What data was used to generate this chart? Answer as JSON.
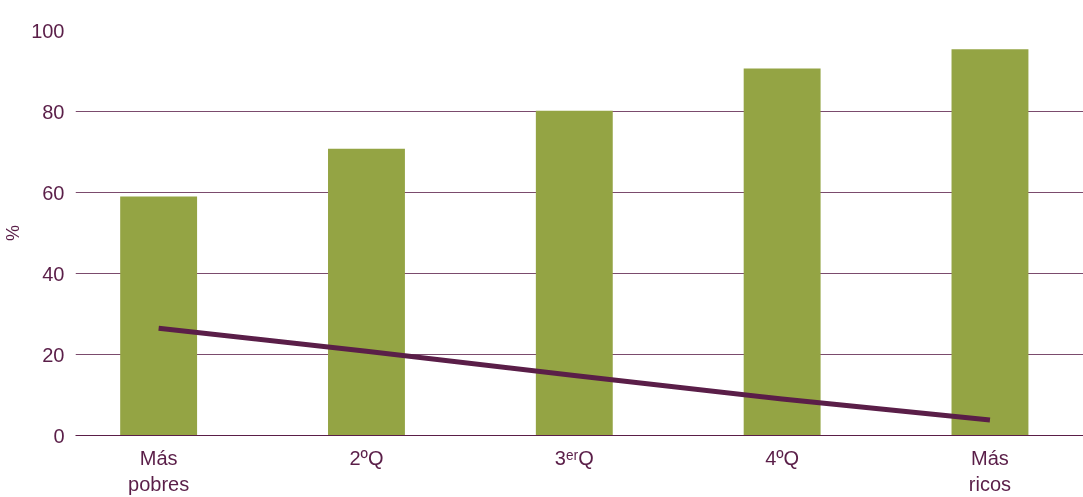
{
  "chart_data": {
    "type": "bar",
    "ylabel": "%",
    "categories": [
      "Más pobres",
      "2ºQ",
      "3ᵉʳQ",
      "4ºQ",
      "Más ricos"
    ],
    "series": [
      {
        "color": "#94a444",
        "values": [
          59,
          70.8,
          80.2,
          90.6,
          95.4
        ]
      },
      {
        "type": "line",
        "color": "#5a1e48",
        "values": [
          26.5,
          20.8,
          14.8,
          9,
          3.8
        ]
      }
    ],
    "ylim": [
      0,
      100
    ],
    "yticks": [
      0,
      20,
      40,
      60,
      80,
      100
    ],
    "grid": "y",
    "marker": "none",
    "line_style": "solid"
  }
}
